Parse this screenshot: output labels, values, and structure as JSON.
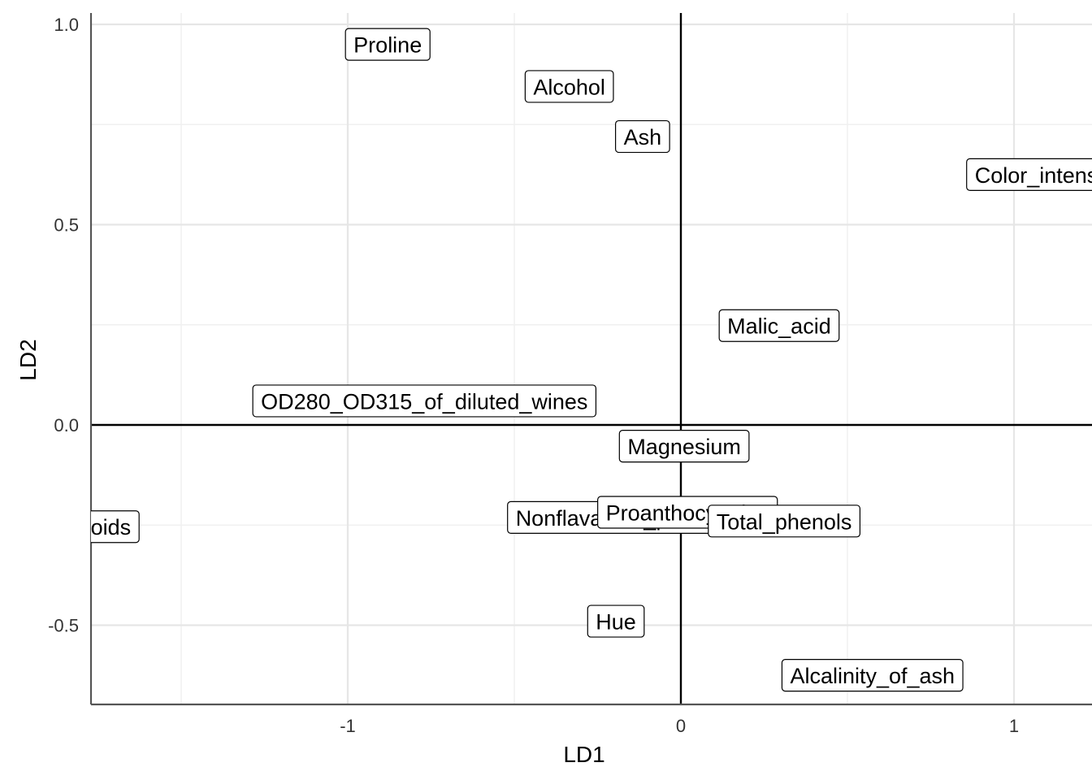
{
  "chart_data": {
    "type": "scatter",
    "xlabel": "LD1",
    "ylabel": "LD2",
    "xlim": [
      -1.77,
      1.2
    ],
    "ylim": [
      -0.7,
      1.03
    ],
    "x_ticks": [
      -1,
      0,
      1
    ],
    "x_tick_labels": [
      "-1",
      "0",
      "1"
    ],
    "y_ticks": [
      -0.5,
      0.0,
      0.5,
      1.0
    ],
    "y_tick_labels": [
      "-0.5",
      "0.0",
      "0.5",
      "1.0"
    ],
    "grid": true,
    "reference_lines": {
      "x": 0,
      "y": 0
    },
    "points": [
      {
        "label": "Proline",
        "x": -0.88,
        "y": 0.95
      },
      {
        "label": "Alcohol",
        "x": -0.335,
        "y": 0.845
      },
      {
        "label": "Ash",
        "x": -0.115,
        "y": 0.72
      },
      {
        "label": "Color_intensity",
        "x": 1.1,
        "y": 0.625
      },
      {
        "label": "Malic_acid",
        "x": 0.295,
        "y": 0.248
      },
      {
        "label": "OD280_OD315_of_diluted_wines",
        "x": -0.77,
        "y": 0.06
      },
      {
        "label": "Magnesium",
        "x": 0.01,
        "y": -0.053
      },
      {
        "label": "Flavanoids",
        "x": -1.81,
        "y": -0.254
      },
      {
        "label": "Nonflavanoid_phenols",
        "x": -0.17,
        "y": -0.231
      },
      {
        "label": "Proanthocyanins",
        "x": 0.02,
        "y": -0.218
      },
      {
        "label": "Total_phenols",
        "x": 0.31,
        "y": -0.24
      },
      {
        "label": "Hue",
        "x": -0.195,
        "y": -0.49
      },
      {
        "label": "Alcalinity_of_ash",
        "x": 0.575,
        "y": -0.625
      }
    ]
  }
}
